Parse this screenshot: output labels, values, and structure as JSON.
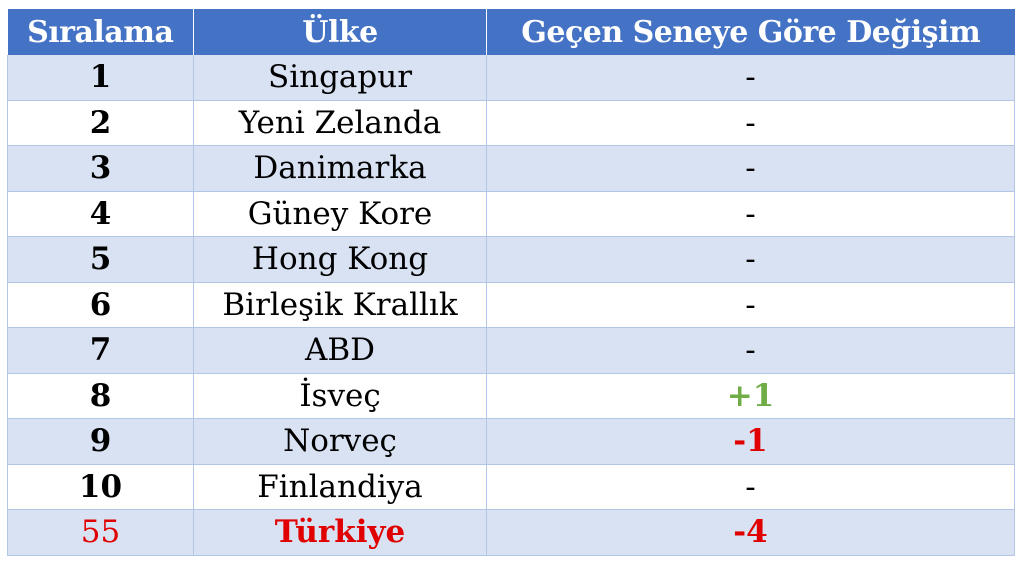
{
  "headers": {
    "rank": "Sıralama",
    "country": "Ülke",
    "change": "Geçen Seneye Göre Değişim"
  },
  "rows": [
    {
      "rank": "1",
      "country": "Singapur",
      "change": "-"
    },
    {
      "rank": "2",
      "country": "Yeni Zelanda",
      "change": "-"
    },
    {
      "rank": "3",
      "country": "Danimarka",
      "change": "-"
    },
    {
      "rank": "4",
      "country": "Güney Kore",
      "change": "-"
    },
    {
      "rank": "5",
      "country": "Hong Kong",
      "change": "-"
    },
    {
      "rank": "6",
      "country": "Birleşik Krallık",
      "change": "-"
    },
    {
      "rank": "7",
      "country": "ABD",
      "change": "-"
    },
    {
      "rank": "8",
      "country": "İsveç",
      "change": "+1"
    },
    {
      "rank": "9",
      "country": "Norveç",
      "change": "-1"
    },
    {
      "rank": "10",
      "country": "Finlandiya",
      "change": "-"
    },
    {
      "rank": "55",
      "country": "Türkiye",
      "change": "-4"
    }
  ],
  "colors": {
    "header_bg": "#4472c4",
    "band": "#d9e2f3",
    "positive": "#70ad47",
    "negative": "#e00000"
  }
}
